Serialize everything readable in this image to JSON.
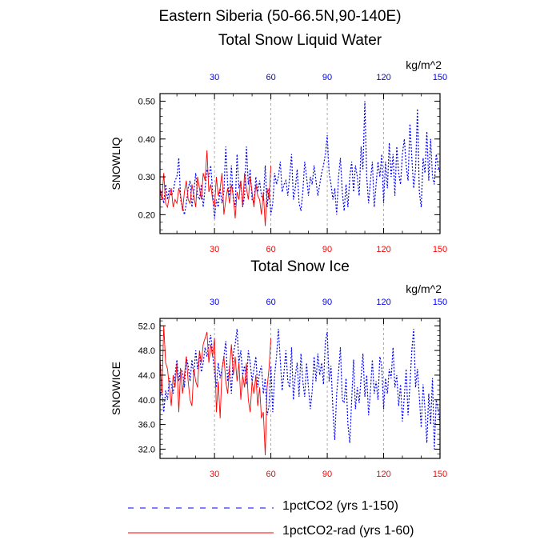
{
  "suptitle": "Eastern Siberia (50-66.5N,90-140E)",
  "colors": {
    "blue": "#0000ff",
    "red": "#ff0000",
    "grid": "#999999"
  },
  "legend": {
    "series1": "1pctCO2 (yrs 1-150)",
    "series2": "1pctCO2-rad (yrs 1-60)"
  },
  "chart_data": [
    {
      "type": "line",
      "title": "Total Snow Liquid Water",
      "units": "kg/m^2",
      "ylabel": "SNOWLIQ",
      "xlim": [
        1,
        150
      ],
      "ylim": [
        0.15,
        0.52
      ],
      "xticks": [
        30,
        60,
        90,
        120,
        150
      ],
      "yticks": [
        0.2,
        0.3,
        0.4,
        0.5
      ],
      "ytick_labels": [
        "0.20",
        "0.30",
        "0.40",
        "0.50"
      ],
      "grid_x": true,
      "series": [
        {
          "name": "1pctCO2 (yrs 1-150)",
          "style": "dotted",
          "color": "#0000ff",
          "values": [
            0.25,
            0.26,
            0.23,
            0.28,
            0.24,
            0.27,
            0.25,
            0.26,
            0.29,
            0.3,
            0.35,
            0.24,
            0.22,
            0.2,
            0.23,
            0.27,
            0.29,
            0.22,
            0.26,
            0.31,
            0.25,
            0.24,
            0.28,
            0.22,
            0.27,
            0.32,
            0.3,
            0.33,
            0.26,
            0.19,
            0.24,
            0.22,
            0.27,
            0.23,
            0.26,
            0.38,
            0.28,
            0.25,
            0.33,
            0.24,
            0.22,
            0.36,
            0.27,
            0.29,
            0.22,
            0.25,
            0.38,
            0.28,
            0.32,
            0.24,
            0.23,
            0.3,
            0.26,
            0.29,
            0.25,
            0.24,
            0.33,
            0.22,
            0.27,
            0.2,
            0.23,
            0.31,
            0.28,
            0.3,
            0.34,
            0.26,
            0.28,
            0.29,
            0.25,
            0.3,
            0.36,
            0.24,
            0.27,
            0.32,
            0.23,
            0.21,
            0.26,
            0.34,
            0.3,
            0.25,
            0.3,
            0.28,
            0.33,
            0.29,
            0.25,
            0.28,
            0.31,
            0.33,
            0.36,
            0.41,
            0.31,
            0.28,
            0.24,
            0.27,
            0.2,
            0.3,
            0.35,
            0.26,
            0.21,
            0.28,
            0.22,
            0.3,
            0.34,
            0.26,
            0.33,
            0.3,
            0.25,
            0.38,
            0.32,
            0.5,
            0.3,
            0.23,
            0.29,
            0.34,
            0.22,
            0.28,
            0.34,
            0.3,
            0.36,
            0.23,
            0.34,
            0.27,
            0.39,
            0.3,
            0.36,
            0.25,
            0.38,
            0.31,
            0.28,
            0.36,
            0.4,
            0.33,
            0.29,
            0.44,
            0.35,
            0.27,
            0.32,
            0.48,
            0.26,
            0.22,
            0.35,
            0.31,
            0.42,
            0.29,
            0.4,
            0.3,
            0.28,
            0.36,
            0.33,
            0.31
          ]
        },
        {
          "name": "1pctCO2-rad (yrs 1-60)",
          "style": "solid",
          "color": "#ff0000",
          "values": [
            0.27,
            0.24,
            0.31,
            0.23,
            0.22,
            0.25,
            0.27,
            0.22,
            0.24,
            0.23,
            0.27,
            0.25,
            0.21,
            0.26,
            0.29,
            0.24,
            0.23,
            0.28,
            0.25,
            0.22,
            0.3,
            0.27,
            0.24,
            0.31,
            0.29,
            0.37,
            0.26,
            0.28,
            0.24,
            0.22,
            0.3,
            0.25,
            0.27,
            0.31,
            0.2,
            0.24,
            0.27,
            0.23,
            0.28,
            0.25,
            0.19,
            0.26,
            0.24,
            0.29,
            0.22,
            0.31,
            0.27,
            0.24,
            0.3,
            0.26,
            0.22,
            0.28,
            0.25,
            0.24,
            0.2,
            0.26,
            0.17,
            0.27,
            0.24,
            0.33
          ]
        }
      ]
    },
    {
      "type": "line",
      "title": "Total Snow Ice",
      "units": "kg/m^2",
      "ylabel": "SNOWICE",
      "xlim": [
        1,
        150
      ],
      "ylim": [
        30.5,
        53.2
      ],
      "xticks": [
        30,
        60,
        90,
        120,
        150
      ],
      "yticks": [
        32,
        36,
        40,
        44,
        48,
        52
      ],
      "ytick_labels": [
        "32.0",
        "36.0",
        "40.0",
        "44.0",
        "48.0",
        "52.0"
      ],
      "grid_x": true,
      "series": [
        {
          "name": "1pctCO2 (yrs 1-150)",
          "style": "dotted",
          "color": "#0000ff",
          "values": [
            40.5,
            42.0,
            38.0,
            41.5,
            40.0,
            43.5,
            42.5,
            41.0,
            44.0,
            46.5,
            43.0,
            45.0,
            44.5,
            42.0,
            47.0,
            45.5,
            43.0,
            46.5,
            44.0,
            48.0,
            45.0,
            47.5,
            44.5,
            46.0,
            48.5,
            47.0,
            49.0,
            50.5,
            47.5,
            44.5,
            42.0,
            46.0,
            43.5,
            45.0,
            47.0,
            49.5,
            43.0,
            45.5,
            41.0,
            47.5,
            49.0,
            51.5,
            46.0,
            48.0,
            44.0,
            45.5,
            42.5,
            48.0,
            46.0,
            43.0,
            45.0,
            47.0,
            42.0,
            44.5,
            45.5,
            41.0,
            43.5,
            37.5,
            39.0,
            45.5,
            38.0,
            44.0,
            47.0,
            51.5,
            46.5,
            41.5,
            44.5,
            48.0,
            43.0,
            42.0,
            48.5,
            40.0,
            44.0,
            46.0,
            40.5,
            47.5,
            43.0,
            40.5,
            46.0,
            42.0,
            38.5,
            41.5,
            47.0,
            43.0,
            47.5,
            44.0,
            46.0,
            42.5,
            49.5,
            51.0,
            43.0,
            45.5,
            38.5,
            33.5,
            41.0,
            44.5,
            48.5,
            40.0,
            39.5,
            43.5,
            36.0,
            33.0,
            40.0,
            46.5,
            38.5,
            42.0,
            39.5,
            43.5,
            47.5,
            40.5,
            44.0,
            37.5,
            41.5,
            46.5,
            41.0,
            43.0,
            40.0,
            47.0,
            45.5,
            38.5,
            43.5,
            41.0,
            45.0,
            43.5,
            48.5,
            42.0,
            44.0,
            39.0,
            42.5,
            36.5,
            40.5,
            45.0,
            37.5,
            42.5,
            48.0,
            51.5,
            42.0,
            45.0,
            40.5,
            35.5,
            42.5,
            38.5,
            33.0,
            41.0,
            36.0,
            43.5,
            32.0,
            40.0,
            38.5,
            36.5
          ]
        },
        {
          "name": "1pctCO2-rad (yrs 1-60)",
          "style": "solid",
          "color": "#ff0000",
          "values": [
            47.0,
            41.0,
            52.0,
            46.0,
            45.0,
            42.0,
            39.0,
            44.0,
            42.0,
            46.0,
            38.0,
            45.0,
            41.0,
            44.0,
            47.0,
            43.0,
            40.0,
            39.0,
            45.0,
            43.0,
            42.0,
            48.0,
            46.0,
            49.0,
            50.0,
            51.0,
            46.0,
            49.0,
            47.0,
            50.0,
            38.0,
            43.0,
            37.0,
            45.0,
            47.0,
            43.0,
            41.0,
            45.0,
            49.0,
            44.0,
            47.0,
            43.0,
            46.0,
            40.0,
            44.0,
            42.0,
            46.0,
            40.0,
            38.0,
            43.0,
            41.0,
            44.0,
            39.0,
            42.0,
            37.0,
            38.0,
            31.0,
            42.0,
            45.0,
            50.0
          ]
        }
      ]
    }
  ]
}
